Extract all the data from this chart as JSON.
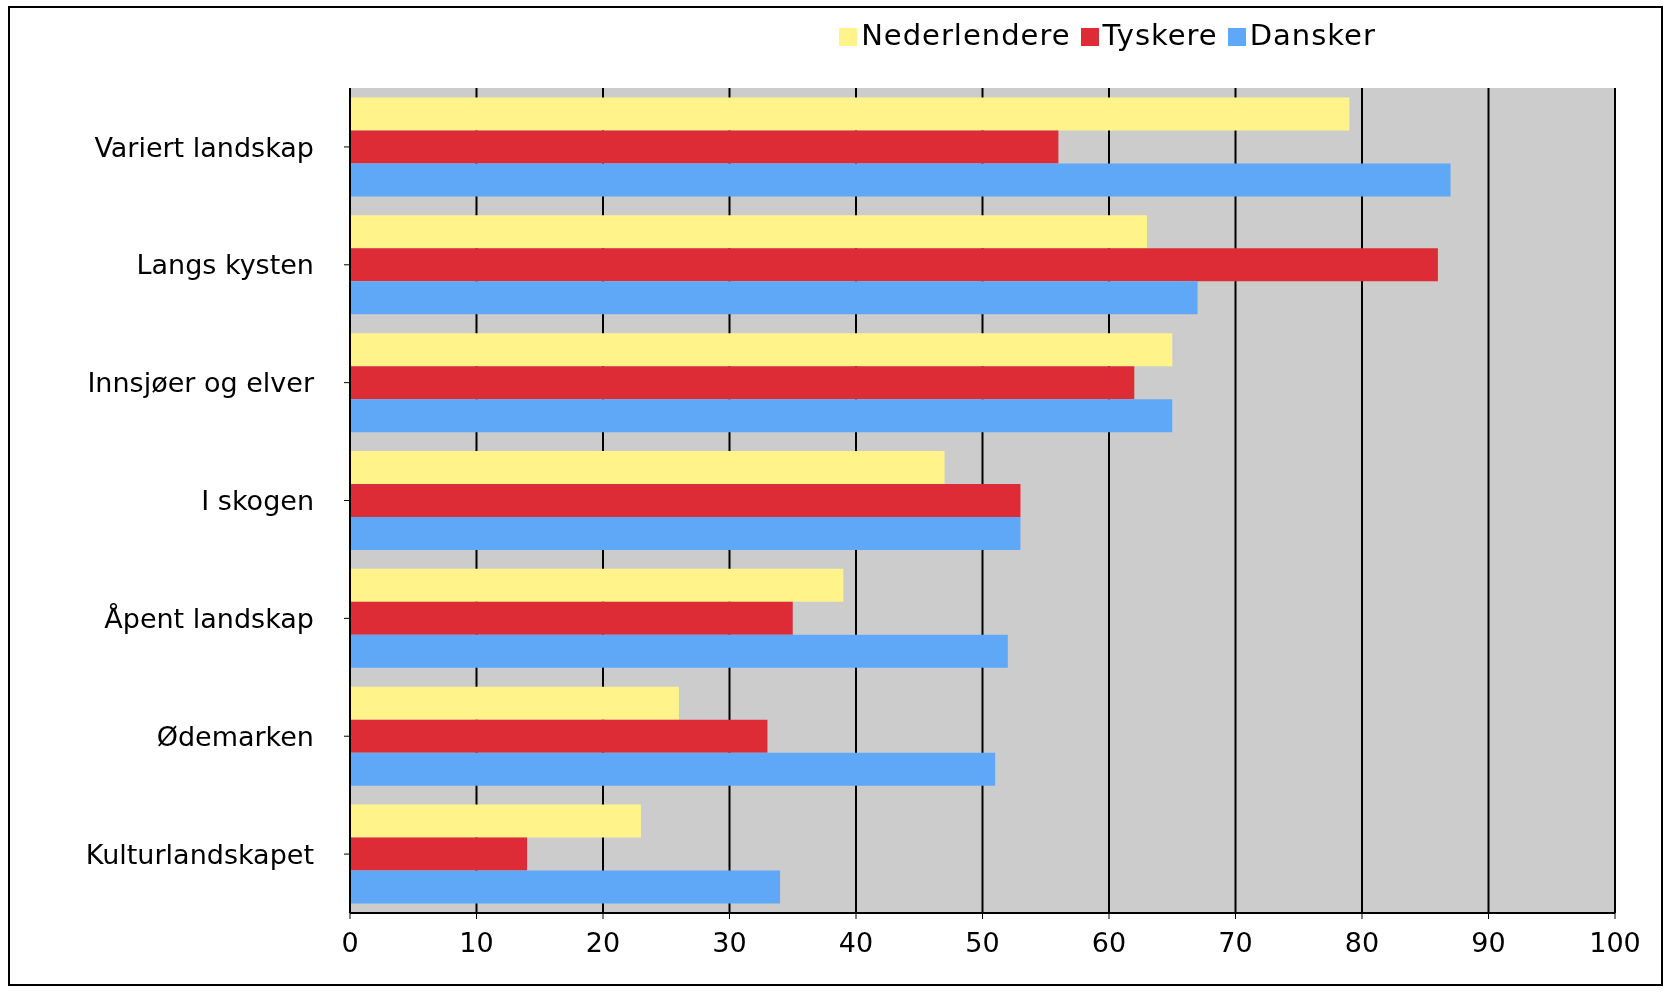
{
  "chart_data": {
    "type": "bar",
    "orientation": "horizontal",
    "categories": [
      "Variert landskap",
      "Langs kysten",
      "Innsjøer og elver",
      "I skogen",
      "Åpent landskap",
      "Ødemarken",
      "Kulturlandskapet"
    ],
    "series": [
      {
        "name": "Nederlendere",
        "color": "#fff38a",
        "values": [
          79,
          63,
          65,
          47,
          39,
          26,
          23
        ]
      },
      {
        "name": "Tyskere",
        "color": "#dd2c35",
        "values": [
          56,
          86,
          62,
          53,
          35,
          33,
          14
        ]
      },
      {
        "name": "Dansker",
        "color": "#5fa8f8",
        "values": [
          87,
          67,
          65,
          53,
          52,
          51,
          34
        ]
      }
    ],
    "xlim": [
      0,
      100
    ],
    "xticks": [
      0,
      10,
      20,
      30,
      40,
      50,
      60,
      70,
      80,
      90,
      100
    ],
    "grid": "x",
    "legend": "top"
  }
}
